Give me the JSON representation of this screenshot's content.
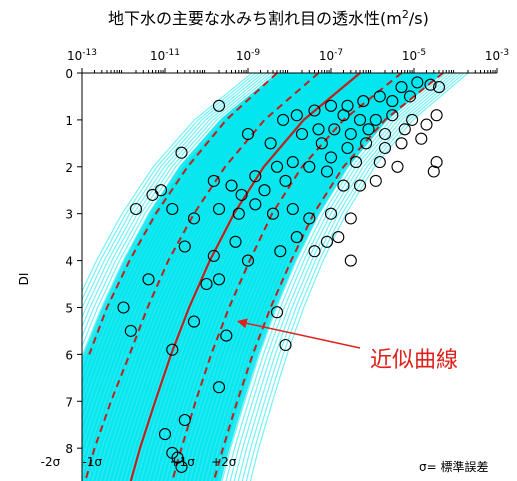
{
  "chart_data": {
    "type": "scatter",
    "title_main": "地下水の主要な水みち割れ目の透水性(m",
    "title_sup": "2",
    "title_end": "/s)",
    "ylabel": "DI",
    "xscale": "log",
    "xlim": [
      1e-13,
      0.001
    ],
    "ylim": [
      0,
      8.7
    ],
    "x_ticks": [
      {
        "exp": -13,
        "label_base": "10",
        "label_exp": "-13"
      },
      {
        "exp": -11,
        "label_base": "10",
        "label_exp": "-11"
      },
      {
        "exp": -9,
        "label_base": "10",
        "label_exp": "-9"
      },
      {
        "exp": -7,
        "label_base": "10",
        "label_exp": "-7"
      },
      {
        "exp": -5,
        "label_base": "10",
        "label_exp": "-5"
      },
      {
        "exp": -3,
        "label_base": "10",
        "label_exp": "-3"
      }
    ],
    "y_ticks": [
      "0",
      "1",
      "2",
      "3",
      "4",
      "5",
      "6",
      "7",
      "8"
    ],
    "band_color": "#00e5ee",
    "fit_curve": {
      "name": "近似曲線",
      "color": "#c0201b",
      "points": [
        [
          5e-07,
          0
        ],
        [
          2.2e-08,
          1.0
        ],
        [
          2.4e-09,
          2.0
        ],
        [
          4.6e-10,
          3.0
        ],
        [
          1.2e-10,
          4.0
        ],
        [
          3.8e-11,
          5.0
        ],
        [
          1.4e-11,
          6.0
        ],
        [
          5.8e-12,
          7.0
        ],
        [
          2.5e-12,
          8.0
        ],
        [
          1.5e-12,
          8.7
        ]
      ]
    },
    "sigma_curves": [
      {
        "label": "-2σ",
        "points": [
          [
            5e-09,
            0
          ],
          [
            3e-10,
            1.0
          ],
          [
            3.5e-11,
            2.0
          ],
          [
            6e-12,
            3.0
          ],
          [
            1.4e-12,
            4.0
          ],
          [
            4e-13,
            5.0
          ],
          [
            1.5e-13,
            6.0
          ]
        ]
      },
      {
        "label": "-1σ",
        "points": [
          [
            5e-08,
            0
          ],
          [
            2.5e-09,
            1.0
          ],
          [
            2.8e-10,
            2.0
          ],
          [
            5e-11,
            3.0
          ],
          [
            1.2e-11,
            4.0
          ],
          [
            3.8e-12,
            5.0
          ],
          [
            1.4e-12,
            6.0
          ],
          [
            5e-13,
            7.0
          ],
          [
            2e-13,
            8.0
          ],
          [
            1.2e-13,
            8.7
          ]
        ]
      },
      {
        "label": "+1σ",
        "points": [
          [
            5e-06,
            0
          ],
          [
            2e-07,
            1.0
          ],
          [
            2e-08,
            2.0
          ],
          [
            3.8e-09,
            3.0
          ],
          [
            1.1e-09,
            4.0
          ],
          [
            3.5e-10,
            5.0
          ],
          [
            1.3e-10,
            6.0
          ],
          [
            5.5e-11,
            7.0
          ],
          [
            2.5e-11,
            8.0
          ],
          [
            1.5e-11,
            8.7
          ]
        ]
      },
      {
        "label": "+2σ",
        "points": [
          [
            5e-05,
            0
          ],
          [
            2e-06,
            1.0
          ],
          [
            2e-07,
            2.0
          ],
          [
            3.8e-08,
            3.0
          ],
          [
            1.1e-08,
            4.0
          ],
          [
            3.5e-09,
            5.0
          ],
          [
            1.3e-09,
            6.0
          ],
          [
            5.5e-10,
            7.0
          ],
          [
            2.5e-10,
            8.0
          ],
          [
            1.5e-10,
            8.7
          ]
        ]
      }
    ],
    "points": [
      [
        5e-06,
        0.3
      ],
      [
        1.2e-05,
        0.2
      ],
      [
        2.5e-05,
        0.25
      ],
      [
        4e-05,
        0.3
      ],
      [
        8e-06,
        0.5
      ],
      [
        3e-06,
        0.6
      ],
      [
        1.5e-06,
        0.5
      ],
      [
        6e-07,
        0.6
      ],
      [
        2.5e-07,
        0.7
      ],
      [
        1e-07,
        0.7
      ],
      [
        4e-08,
        0.8
      ],
      [
        1.5e-08,
        0.9
      ],
      [
        7e-09,
        1.0
      ],
      [
        2e-07,
        0.9
      ],
      [
        5e-07,
        1.0
      ],
      [
        1.2e-06,
        1.0
      ],
      [
        3e-06,
        0.9
      ],
      [
        9e-06,
        1.0
      ],
      [
        2e-05,
        1.1
      ],
      [
        3.5e-05,
        0.9
      ],
      [
        6e-06,
        1.2
      ],
      [
        2e-06,
        1.3
      ],
      [
        8e-07,
        1.2
      ],
      [
        3e-07,
        1.3
      ],
      [
        1.2e-07,
        1.2
      ],
      [
        5e-08,
        1.2
      ],
      [
        2e-08,
        1.3
      ],
      [
        3.5e-09,
        1.5
      ],
      [
        1e-09,
        1.3
      ],
      [
        2e-10,
        0.7
      ],
      [
        6e-08,
        1.5
      ],
      [
        2.5e-07,
        1.6
      ],
      [
        7e-07,
        1.5
      ],
      [
        2e-06,
        1.6
      ],
      [
        5e-06,
        1.5
      ],
      [
        1.5e-05,
        1.4
      ],
      [
        1e-07,
        1.8
      ],
      [
        4e-07,
        1.9
      ],
      [
        1.5e-06,
        1.9
      ],
      [
        4e-06,
        2.0
      ],
      [
        8e-08,
        2.1
      ],
      [
        3e-08,
        2.0
      ],
      [
        1.2e-08,
        1.9
      ],
      [
        5e-09,
        2.0
      ],
      [
        1.5e-09,
        2.2
      ],
      [
        1.2e-06,
        2.3
      ],
      [
        5e-07,
        2.4
      ],
      [
        2e-07,
        2.4
      ],
      [
        3.5e-05,
        1.9
      ],
      [
        3e-05,
        2.1
      ],
      [
        2.5e-11,
        1.7
      ],
      [
        1.5e-10,
        2.3
      ],
      [
        4e-10,
        2.4
      ],
      [
        7e-10,
        2.6
      ],
      [
        2.5e-09,
        2.5
      ],
      [
        8e-09,
        2.3
      ],
      [
        5e-12,
        2.6
      ],
      [
        8e-12,
        2.5
      ],
      [
        2e-12,
        2.9
      ],
      [
        1.5e-11,
        2.9
      ],
      [
        5e-11,
        3.1
      ],
      [
        2e-10,
        2.9
      ],
      [
        6e-10,
        3.0
      ],
      [
        1.5e-09,
        2.8
      ],
      [
        4e-09,
        3.0
      ],
      [
        1.2e-08,
        2.9
      ],
      [
        3e-08,
        3.1
      ],
      [
        1e-07,
        3.0
      ],
      [
        3e-07,
        3.1
      ],
      [
        8e-08,
        3.6
      ],
      [
        1.5e-07,
        3.5
      ],
      [
        4e-08,
        3.8
      ],
      [
        1.5e-08,
        3.5
      ],
      [
        6e-09,
        3.8
      ],
      [
        5e-10,
        3.6
      ],
      [
        1.5e-10,
        3.9
      ],
      [
        3e-11,
        3.7
      ],
      [
        1e-09,
        4.0
      ],
      [
        3e-07,
        4.0
      ],
      [
        4e-12,
        4.4
      ],
      [
        1e-10,
        4.5
      ],
      [
        2e-10,
        4.4
      ],
      [
        1e-12,
        5.0
      ],
      [
        5e-09,
        5.1
      ],
      [
        5e-11,
        5.3
      ],
      [
        1.5e-12,
        5.5
      ],
      [
        1.5e-11,
        5.9
      ],
      [
        3e-10,
        5.6
      ],
      [
        8e-09,
        5.8
      ],
      [
        2e-10,
        6.7
      ],
      [
        1e-11,
        7.7
      ],
      [
        3e-11,
        7.4
      ],
      [
        1.5e-11,
        8.1
      ],
      [
        2e-11,
        8.2
      ],
      [
        2.5e-11,
        8.4
      ]
    ],
    "annotation": {
      "text": "近似曲線",
      "target": [
        6e-10,
        5.3
      ]
    },
    "sigma_note": "σ= 標準誤差"
  }
}
